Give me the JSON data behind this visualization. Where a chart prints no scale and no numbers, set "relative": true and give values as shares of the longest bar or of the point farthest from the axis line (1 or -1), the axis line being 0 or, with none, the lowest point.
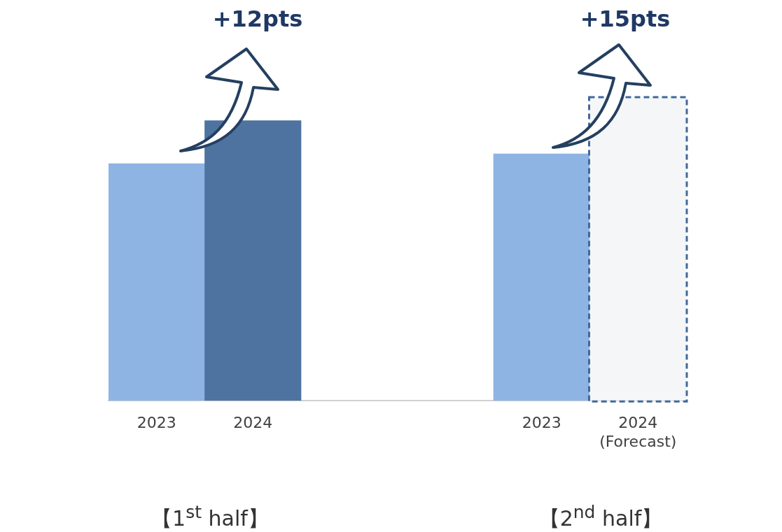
{
  "chart_data": {
    "type": "bar",
    "relative": true,
    "grid": false,
    "legend": false,
    "categories": [
      "2023",
      "2024",
      null,
      null,
      "2023",
      "2024\n(Forecast)"
    ],
    "values": [
      0.783,
      0.925,
      null,
      null,
      0.815,
      1
    ],
    "colors": [
      "#8eb4e3",
      "#4e73a0",
      "#8eb4e3",
      "#8eb4e3",
      "#8eb4e3",
      "#f5f6f8"
    ],
    "annotations": [
      "+12pts",
      "+15pts",
      "【1$^{st}$ half】",
      "【2$^{nd}$ half】"
    ]
  }
}
